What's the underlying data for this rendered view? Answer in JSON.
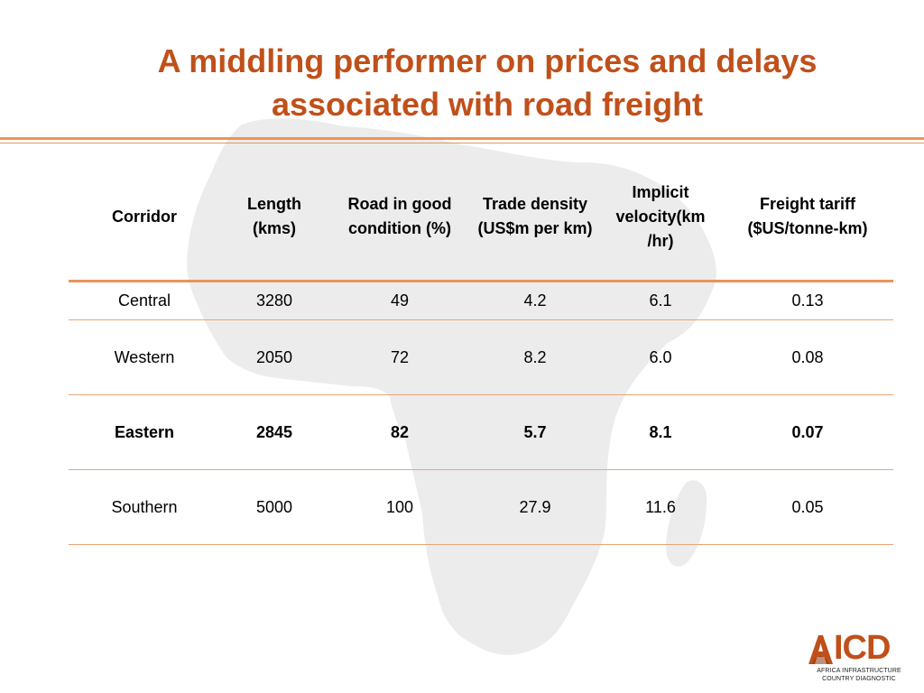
{
  "title": {
    "line1": "A middling performer on prices and delays",
    "line2": "associated with road freight"
  },
  "table": {
    "headers": [
      "Corridor",
      "Length (kms)",
      "Road in good condition (%)",
      "Trade density (US$m per km)",
      "Implicit velocity(km /hr)",
      "Freight tariff ($US/tonne-km)"
    ],
    "rows": [
      [
        "Central",
        "3280",
        "49",
        "4.2",
        "6.1",
        "0.13"
      ],
      [
        "Western",
        "2050",
        "72",
        "8.2",
        "6.0",
        "0.08"
      ],
      [
        "Eastern",
        "2845",
        "82",
        "5.7",
        "8.1",
        "0.07"
      ],
      [
        "Southern",
        "5000",
        "100",
        "27.9",
        "11.6",
        "0.05"
      ]
    ],
    "bold_row": "Eastern"
  },
  "logo": {
    "letters": "ICD",
    "line1": "AFRICA INFRASTRUCTURE",
    "line2": "COUNTRY DIAGNOSTIC"
  },
  "colors": {
    "title": "#c0501a",
    "rules": "#e8955c",
    "map": "#ececec"
  },
  "icons": {
    "background": "africa-map-silhouette",
    "logo": "aicd-logo"
  }
}
